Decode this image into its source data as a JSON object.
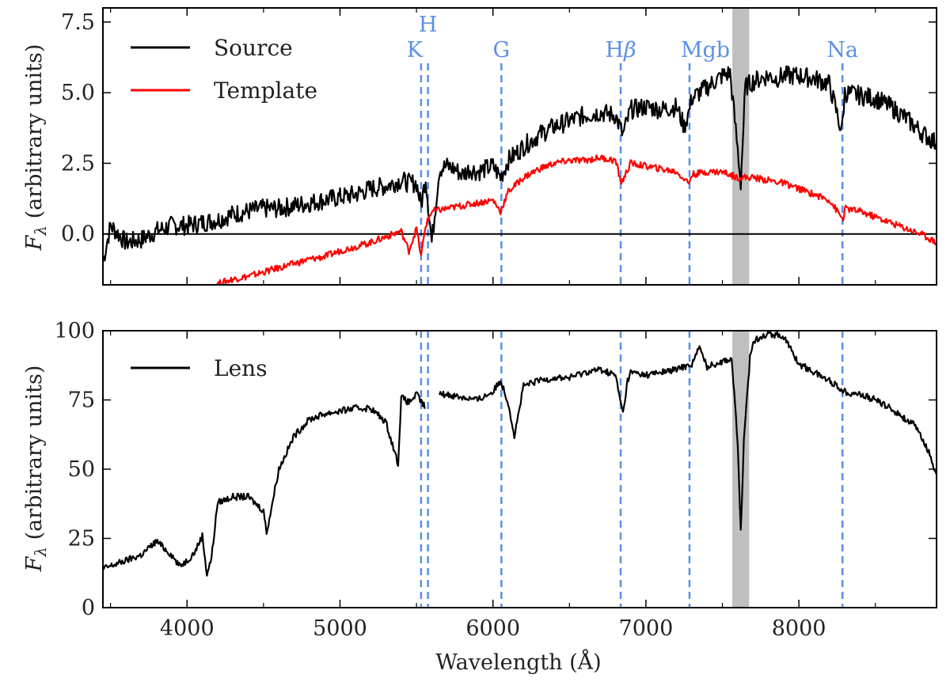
{
  "chart_data": [
    {
      "type": "line",
      "panel": "top",
      "xlabel": "",
      "ylabel": "F_λ (arbitrary units)",
      "ylabel_symbol": "F",
      "ylabel_subscript": "λ",
      "ylabel_text": " (arbitrary units)",
      "xlim": [
        3450,
        8900
      ],
      "ylim": [
        -1.8,
        8.0
      ],
      "yticks": [
        0.0,
        2.5,
        5.0,
        7.5
      ],
      "ytick_labels": [
        "0.0",
        "2.5",
        "5.0",
        "7.5"
      ],
      "xticks": [
        4000,
        5000,
        6000,
        7000,
        8000
      ],
      "zero_line": 0.0,
      "legend_position": "top-left",
      "series": [
        {
          "name": "Source",
          "color": "#000000",
          "x": [
            3450,
            3500,
            3600,
            3700,
            3800,
            3900,
            4000,
            4100,
            4200,
            4300,
            4400,
            4500,
            4600,
            4700,
            4800,
            4900,
            5000,
            5100,
            5200,
            5300,
            5400,
            5450,
            5500,
            5530,
            5560,
            5600,
            5650,
            5700,
            5750,
            5800,
            5850,
            5900,
            5950,
            6000,
            6050,
            6100,
            6200,
            6300,
            6400,
            6500,
            6600,
            6700,
            6800,
            6850,
            6900,
            7000,
            7100,
            7200,
            7250,
            7280,
            7300,
            7400,
            7500,
            7550,
            7600,
            7620,
            7650,
            7700,
            7750,
            7800,
            7850,
            7900,
            8000,
            8100,
            8200,
            8280,
            8300,
            8400,
            8500,
            8600,
            8700,
            8800,
            8900
          ],
          "y": [
            -1.0,
            0.3,
            -0.3,
            -0.2,
            0.1,
            0.3,
            0.3,
            0.4,
            0.5,
            0.7,
            0.8,
            0.9,
            0.9,
            1.0,
            1.1,
            1.2,
            1.3,
            1.4,
            1.6,
            1.7,
            1.9,
            1.8,
            1.8,
            1.0,
            2.0,
            -0.3,
            2.3,
            2.4,
            2.3,
            2.1,
            2.3,
            2.2,
            2.3,
            2.4,
            2.0,
            2.6,
            3.1,
            3.5,
            3.8,
            4.0,
            4.2,
            4.3,
            4.2,
            3.5,
            4.4,
            4.5,
            4.4,
            4.5,
            3.8,
            4.3,
            4.8,
            5.2,
            5.6,
            5.7,
            3.0,
            1.8,
            5.2,
            5.4,
            5.5,
            5.6,
            5.5,
            5.6,
            5.6,
            5.5,
            5.3,
            3.6,
            5.0,
            4.9,
            4.8,
            4.5,
            4.1,
            3.6,
            3.2
          ]
        },
        {
          "name": "Template",
          "color": "#ff0000",
          "x": [
            4180,
            4300,
            4400,
            4500,
            4600,
            4700,
            4800,
            4900,
            5000,
            5100,
            5200,
            5300,
            5400,
            5450,
            5500,
            5530,
            5560,
            5600,
            5700,
            5800,
            5900,
            6000,
            6050,
            6100,
            6200,
            6300,
            6400,
            6500,
            6600,
            6700,
            6800,
            6840,
            6900,
            7000,
            7100,
            7200,
            7280,
            7300,
            7400,
            7500,
            7600,
            7700,
            7800,
            7900,
            8000,
            8100,
            8200,
            8290,
            8300,
            8400,
            8500,
            8600,
            8700,
            8800,
            8900
          ],
          "y": [
            -1.8,
            -1.6,
            -1.5,
            -1.35,
            -1.2,
            -1.05,
            -0.9,
            -0.8,
            -0.6,
            -0.45,
            -0.3,
            -0.1,
            0.1,
            -0.6,
            0.2,
            -0.8,
            0.3,
            0.8,
            0.9,
            1.0,
            1.1,
            1.2,
            0.8,
            1.5,
            2.0,
            2.3,
            2.5,
            2.6,
            2.6,
            2.7,
            2.6,
            1.8,
            2.5,
            2.4,
            2.3,
            2.2,
            1.8,
            2.1,
            2.2,
            2.2,
            2.0,
            2.0,
            1.9,
            1.8,
            1.6,
            1.4,
            1.2,
            0.5,
            0.9,
            0.8,
            0.6,
            0.4,
            0.2,
            0.0,
            -0.3
          ]
        }
      ]
    },
    {
      "type": "line",
      "panel": "bottom",
      "xlabel": "Wavelength (Å)",
      "ylabel": "F_λ (arbitrary units)",
      "ylabel_symbol": "F",
      "ylabel_subscript": "λ",
      "ylabel_text": " (arbitrary units)",
      "xlim": [
        3450,
        8900
      ],
      "ylim": [
        0,
        100
      ],
      "yticks": [
        0,
        25,
        50,
        75,
        100
      ],
      "ytick_labels": [
        "0",
        "25",
        "50",
        "75",
        "100"
      ],
      "xticks": [
        4000,
        5000,
        6000,
        7000,
        8000
      ],
      "xtick_labels": [
        "4000",
        "5000",
        "6000",
        "7000",
        "8000"
      ],
      "legend_position": "top-left",
      "series": [
        {
          "name": "Lens",
          "color": "#000000",
          "x": [
            3450,
            3500,
            3600,
            3700,
            3800,
            3900,
            3950,
            4000,
            4050,
            4100,
            4130,
            4160,
            4200,
            4300,
            4400,
            4500,
            4520,
            4600,
            4700,
            4800,
            4900,
            5000,
            5100,
            5200,
            5300,
            5380,
            5400,
            5450,
            5500,
            5560,
            5600,
            5650,
            5700,
            5800,
            5900,
            6000,
            6050,
            6100,
            6140,
            6200,
            6300,
            6400,
            6500,
            6600,
            6700,
            6800,
            6850,
            6880,
            6900,
            7000,
            7100,
            7200,
            7300,
            7350,
            7400,
            7500,
            7560,
            7600,
            7620,
            7640,
            7680,
            7700,
            7750,
            7800,
            7900,
            8000,
            8100,
            8200,
            8300,
            8400,
            8500,
            8600,
            8700,
            8750,
            8800,
            8850,
            8900
          ],
          "y": [
            14,
            15,
            17,
            19,
            24,
            19,
            15,
            17,
            20,
            26,
            12,
            18,
            38,
            40,
            40,
            35,
            27,
            50,
            62,
            68,
            70,
            71,
            72,
            72,
            67,
            52,
            76,
            74,
            77,
            72,
            null,
            77,
            77,
            76,
            75,
            78,
            82,
            74,
            62,
            80,
            82,
            83,
            83,
            85,
            86,
            84,
            70,
            82,
            85,
            84,
            85,
            86,
            88,
            94,
            87,
            89,
            90,
            60,
            27,
            60,
            90,
            96,
            98,
            99,
            98,
            88,
            85,
            82,
            78,
            77,
            75,
            72,
            68,
            66,
            62,
            56,
            48
          ]
        }
      ]
    }
  ],
  "spectral_lines": [
    {
      "label": "K",
      "wavelength": 5530
    },
    {
      "label": "H",
      "wavelength": 5575
    },
    {
      "label": "G",
      "wavelength": 6055
    },
    {
      "label": "Hβ",
      "label_main": "H",
      "label_greek": "β",
      "wavelength": 6835
    },
    {
      "label": "Mgb",
      "wavelength": 7285
    },
    {
      "label": "Na",
      "wavelength": 8285
    }
  ],
  "telluric_band": {
    "x_start": 7565,
    "x_end": 7675,
    "color": "#bfbfbf"
  },
  "colors": {
    "line_marker": "#5b8fe6",
    "axes": "#000000",
    "source": "#000000",
    "template": "#ff0000",
    "lens": "#000000"
  }
}
